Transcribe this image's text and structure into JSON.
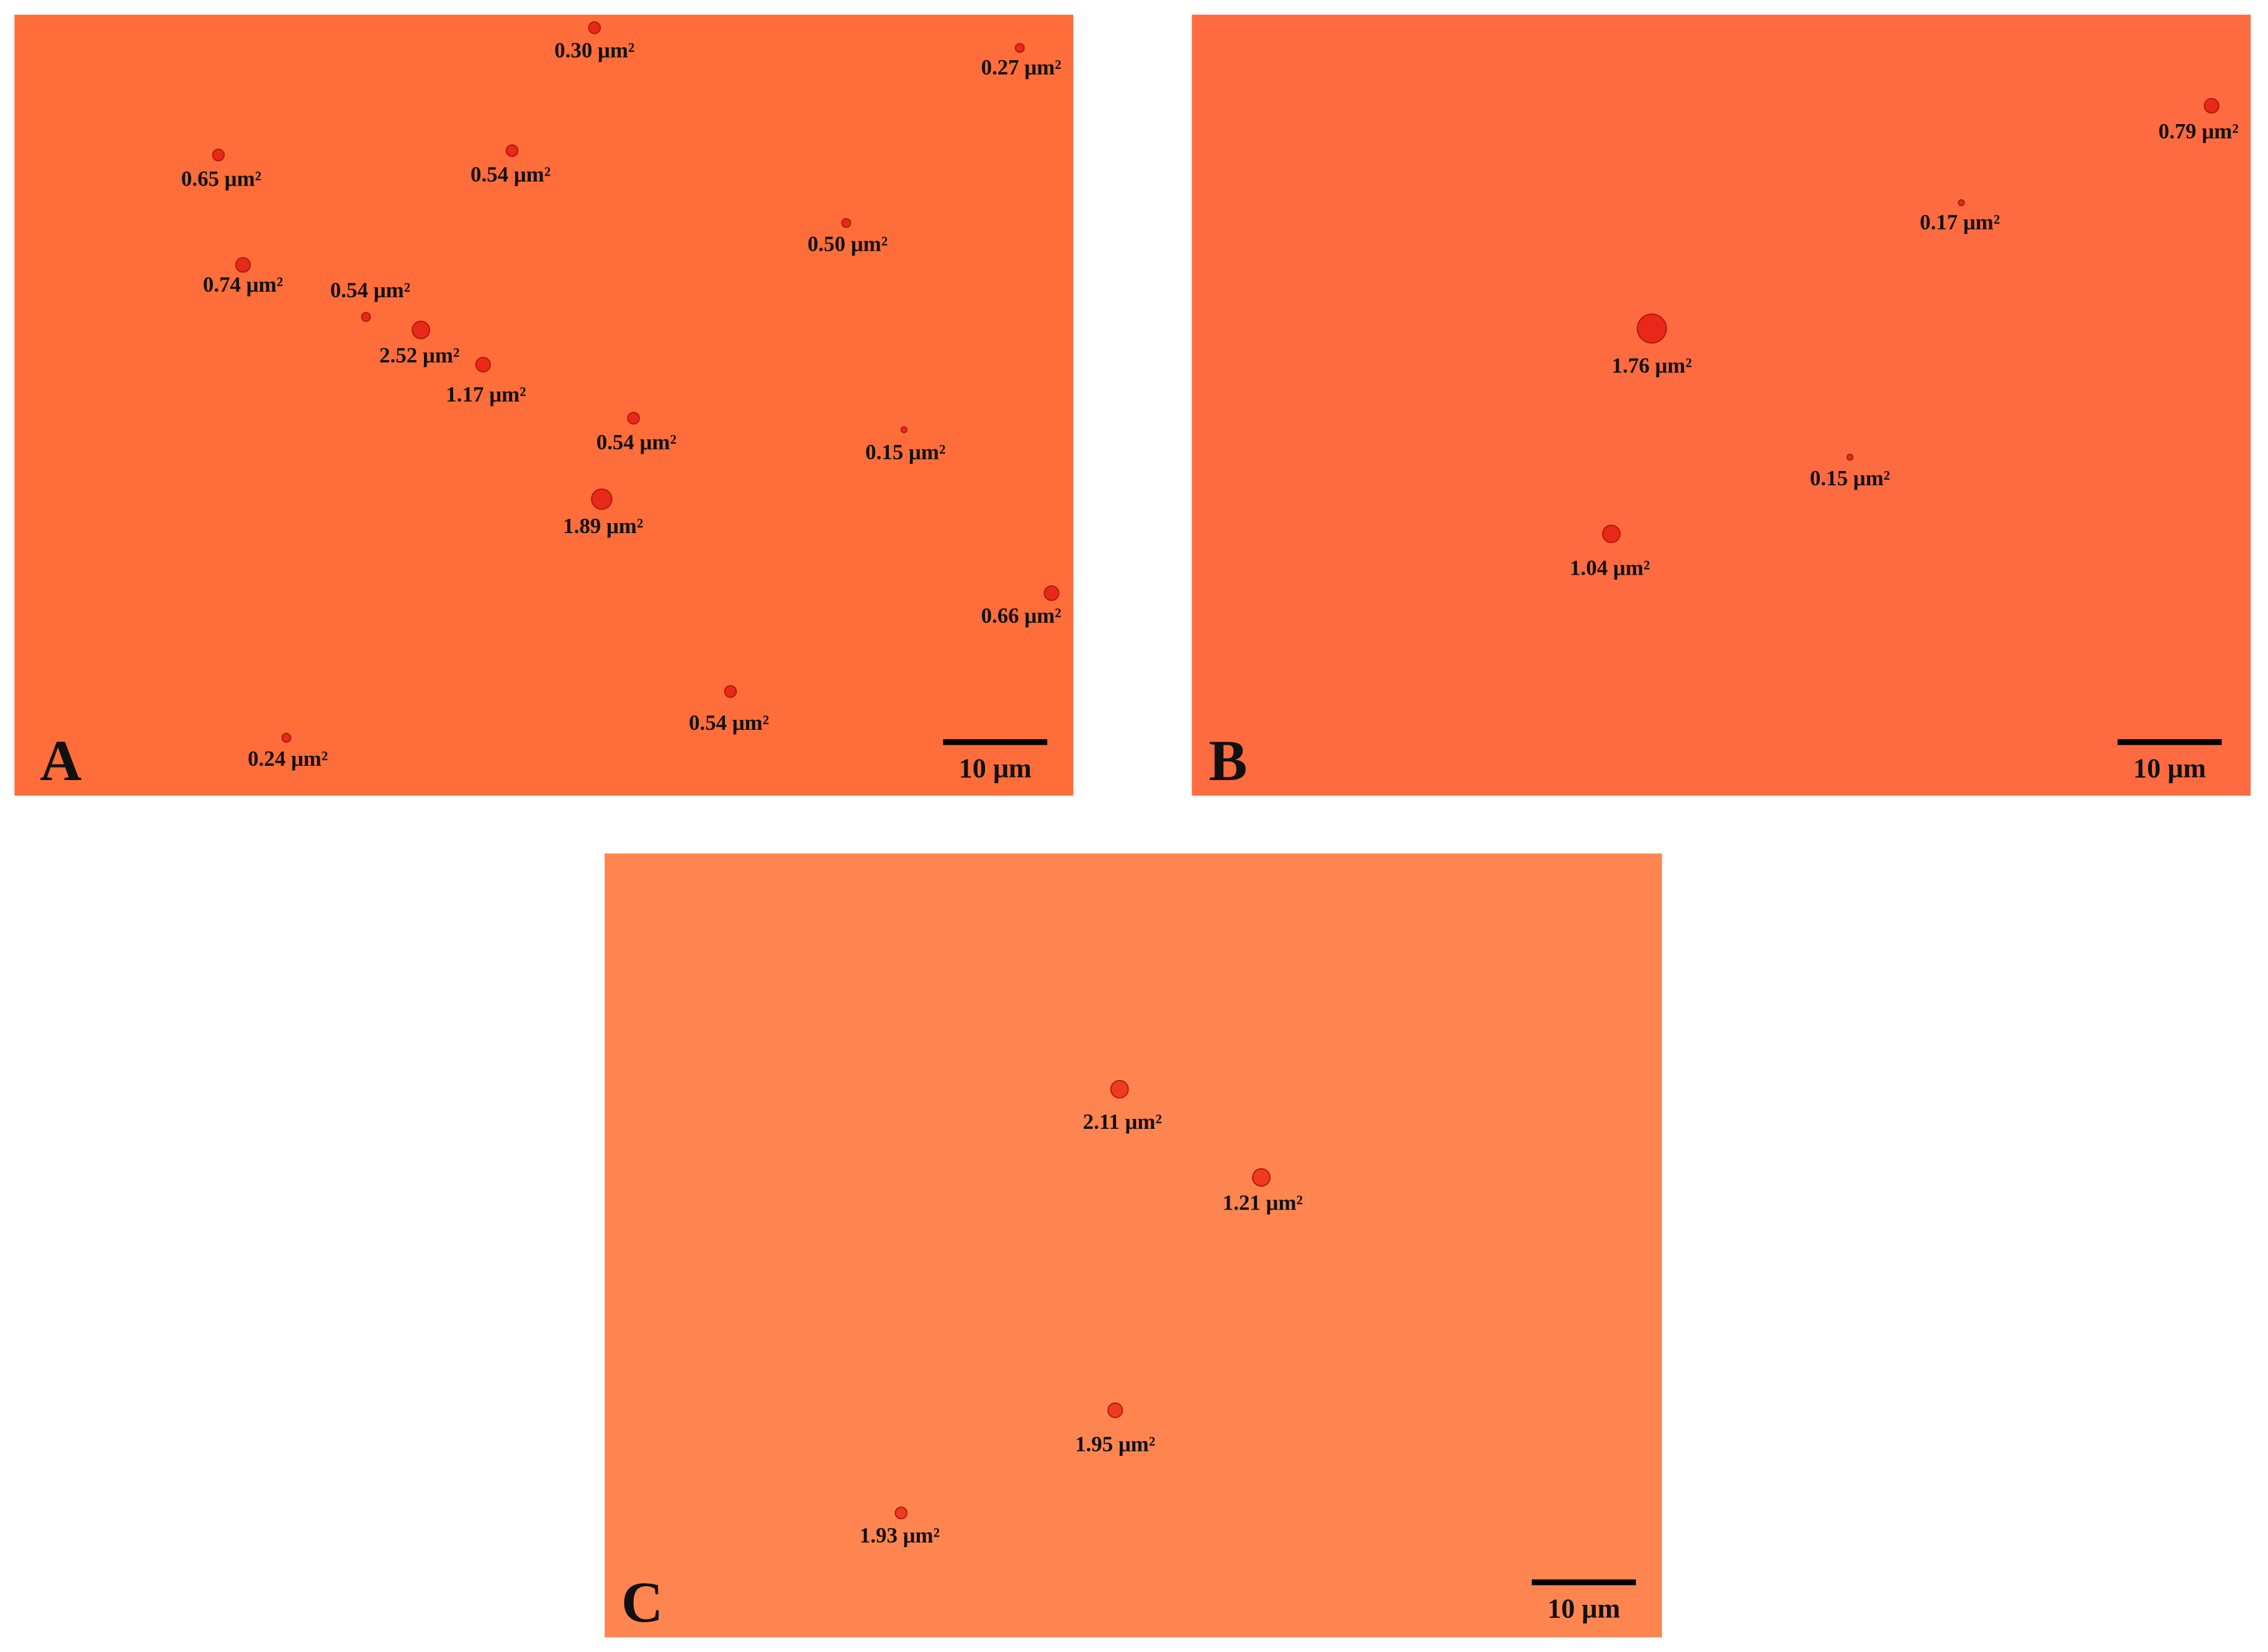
{
  "panels": [
    {
      "letter": "A",
      "scale_bar": "10 μm",
      "particles": [
        "0.30 μm²",
        "0.27 μm²",
        "0.65 μm²",
        "0.54 μm²",
        "0.50 μm²",
        "0.74 μm²",
        "0.54 μm²",
        "2.52 μm²",
        "1.17 μm²",
        "0.54 μm²",
        "0.15 μm²",
        "1.89 μm²",
        "0.66 μm²",
        "0.54 μm²",
        "0.24 μm²"
      ]
    },
    {
      "letter": "B",
      "scale_bar": "10 μm",
      "particles": [
        "0.79 μm²",
        "0.17 μm²",
        "1.76 μm²",
        "0.15 μm²",
        "1.04 μm²"
      ]
    },
    {
      "letter": "C",
      "scale_bar": "10 μm",
      "particles": [
        "2.11 μm²",
        "1.21 μm²",
        "1.95 μm²",
        "1.93 μm²"
      ]
    }
  ]
}
